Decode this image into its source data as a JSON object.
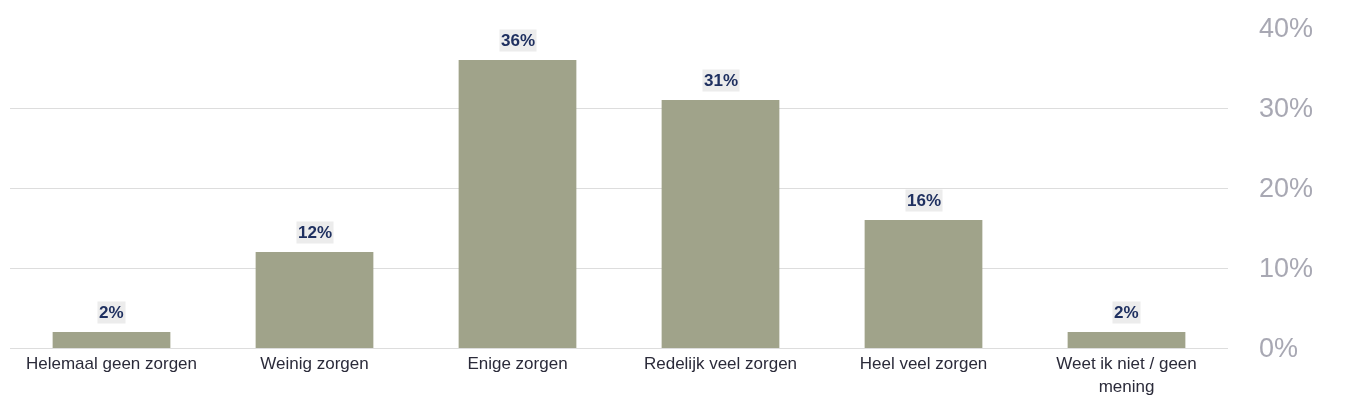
{
  "chart_data": {
    "type": "bar",
    "categories": [
      "Helemaal geen zorgen",
      "Weinig zorgen",
      "Enige zorgen",
      "Redelijk veel zorgen",
      "Heel veel zorgen",
      "Weet ik niet / geen mening"
    ],
    "values": [
      2,
      12,
      36,
      31,
      16,
      2
    ],
    "value_labels": [
      "2%",
      "12%",
      "36%",
      "31%",
      "16%",
      "2%"
    ],
    "color": "#a0a38a",
    "ylim": [
      0,
      40
    ],
    "yticks": [
      {
        "value": 0,
        "label": "0%"
      },
      {
        "value": 10,
        "label": "10%"
      },
      {
        "value": 20,
        "label": "20%"
      },
      {
        "value": 30,
        "label": "30%"
      },
      {
        "value": 40,
        "label": "40%"
      }
    ],
    "grid": "y",
    "legend": false
  }
}
